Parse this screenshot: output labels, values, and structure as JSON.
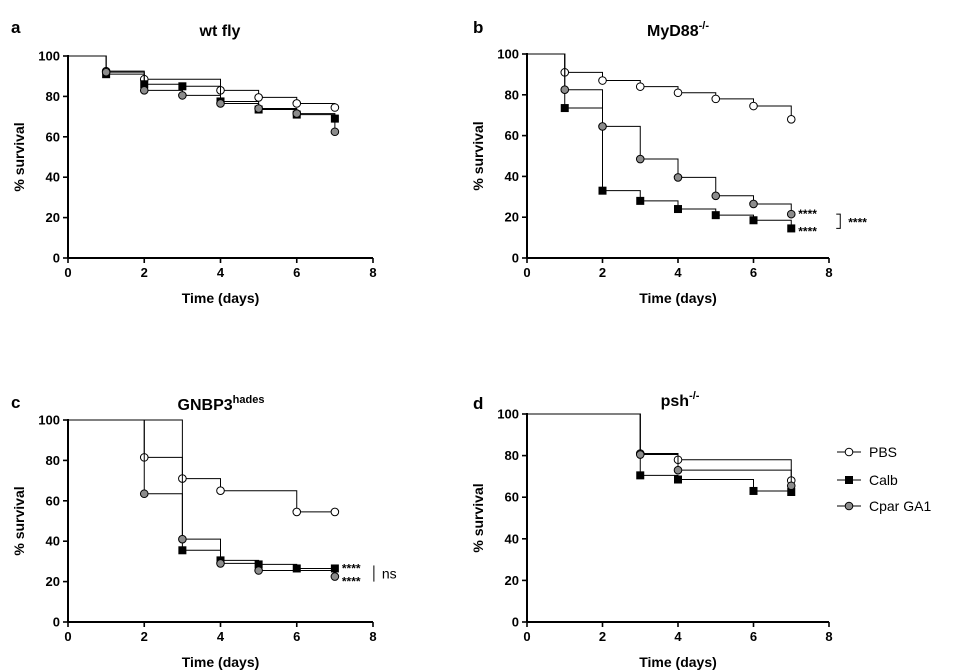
{
  "chart_data": [
    {
      "type": "line",
      "panel": "a",
      "title": "wt fly",
      "xlabel": "Time (days)",
      "ylabel": "% survival",
      "xlim": [
        0,
        8
      ],
      "ylim": [
        0,
        100
      ],
      "xticks": [
        0,
        2,
        4,
        6,
        8
      ],
      "yticks": [
        0,
        20,
        40,
        60,
        80,
        100
      ],
      "series": [
        {
          "name": "PBS",
          "marker": "open",
          "x": [
            1,
            2,
            4,
            5,
            6,
            7
          ],
          "y": [
            92.5,
            88.5,
            83,
            79.5,
            76.5,
            74.5
          ]
        },
        {
          "name": "Calb",
          "marker": "filled",
          "x": [
            1,
            2,
            3,
            4,
            5,
            6,
            7
          ],
          "y": [
            91,
            86,
            85,
            77.5,
            73.5,
            71,
            69
          ]
        },
        {
          "name": "Cpar GA1",
          "marker": "grey",
          "x": [
            1,
            2,
            3,
            4,
            5,
            6,
            7
          ],
          "y": [
            92,
            83,
            80.5,
            76.5,
            74,
            71.5,
            62.5
          ]
        }
      ],
      "annotations": []
    },
    {
      "type": "line",
      "panel": "b",
      "title": "MyD88",
      "title_sup": "-/-",
      "xlabel": "Time (days)",
      "ylabel": "% survival",
      "xlim": [
        0,
        8
      ],
      "ylim": [
        0,
        100
      ],
      "xticks": [
        0,
        2,
        4,
        6,
        8
      ],
      "yticks": [
        0,
        20,
        40,
        60,
        80,
        100
      ],
      "series": [
        {
          "name": "PBS",
          "marker": "open",
          "x": [
            1,
            2,
            3,
            4,
            5,
            6,
            7
          ],
          "y": [
            91,
            87,
            84,
            81,
            78,
            74.5,
            68
          ]
        },
        {
          "name": "Calb",
          "marker": "filled",
          "x": [
            1,
            2,
            3,
            4,
            5,
            6,
            7
          ],
          "y": [
            73.5,
            33,
            28,
            24,
            21,
            18.5,
            14.5
          ]
        },
        {
          "name": "Cpar GA1",
          "marker": "grey",
          "x": [
            1,
            2,
            3,
            4,
            5,
            6,
            7
          ],
          "y": [
            82.5,
            64.5,
            48.5,
            39.5,
            30.5,
            26.5,
            21.5
          ]
        }
      ],
      "annotations": [
        {
          "text": "****",
          "x": 7,
          "y": 22
        },
        {
          "text": "****",
          "x": 7,
          "y": 13.5
        },
        {
          "text": "****",
          "bracket": [
            21.5,
            14.5
          ],
          "x": 7
        }
      ]
    },
    {
      "type": "line",
      "panel": "c",
      "title": "GNBP3",
      "title_sup": "hades",
      "xlabel": "Time (days)",
      "ylabel": "% survival",
      "xlim": [
        0,
        8
      ],
      "ylim": [
        0,
        100
      ],
      "xticks": [
        0,
        2,
        4,
        6,
        8
      ],
      "yticks": [
        0,
        20,
        40,
        60,
        80,
        100
      ],
      "series": [
        {
          "name": "PBS",
          "marker": "open",
          "x": [
            2,
            3,
            4,
            6,
            7
          ],
          "y": [
            81.5,
            71,
            65,
            54.5,
            54.5
          ]
        },
        {
          "name": "Calb",
          "marker": "filled",
          "x": [
            3,
            4,
            5,
            6,
            7
          ],
          "y": [
            35.5,
            30.5,
            28.5,
            26.5,
            26.5
          ]
        },
        {
          "name": "Cpar GA1",
          "marker": "grey",
          "x": [
            2,
            3,
            4,
            5,
            7
          ],
          "y": [
            63.5,
            41,
            29,
            25.5,
            22.5
          ]
        }
      ],
      "annotations": [
        {
          "text": "****",
          "x": 7,
          "y": 27
        },
        {
          "text": "****",
          "x": 7,
          "y": 20.5
        },
        {
          "text": "ns",
          "bracket": [
            28,
            20
          ],
          "x": 7
        }
      ]
    },
    {
      "type": "line",
      "panel": "d",
      "title": "psh",
      "title_sup": "-/-",
      "xlabel": "Time (days)",
      "ylabel": "% survival",
      "xlim": [
        0,
        8
      ],
      "ylim": [
        0,
        100
      ],
      "xticks": [
        0,
        2,
        4,
        6,
        8
      ],
      "yticks": [
        0,
        20,
        40,
        60,
        80,
        100
      ],
      "series": [
        {
          "name": "PBS",
          "marker": "open",
          "x": [
            3,
            4,
            7
          ],
          "y": [
            81,
            78,
            68
          ]
        },
        {
          "name": "Calb",
          "marker": "filled",
          "x": [
            3,
            4,
            6,
            7
          ],
          "y": [
            70.5,
            68.5,
            63,
            62.5
          ]
        },
        {
          "name": "Cpar GA1",
          "marker": "grey",
          "x": [
            3,
            4,
            7
          ],
          "y": [
            80.5,
            73,
            65.5
          ]
        }
      ],
      "annotations": []
    }
  ],
  "legend": {
    "placement": "right",
    "items": [
      {
        "label": "PBS",
        "marker": "open"
      },
      {
        "label": "Calb",
        "marker": "filled"
      },
      {
        "label": "Cpar GA1",
        "marker": "grey"
      }
    ]
  },
  "colors": {
    "line": "#000000",
    "open_fill": "#ffffff",
    "filled_fill": "#000000",
    "grey_fill": "#8c8c8c"
  }
}
